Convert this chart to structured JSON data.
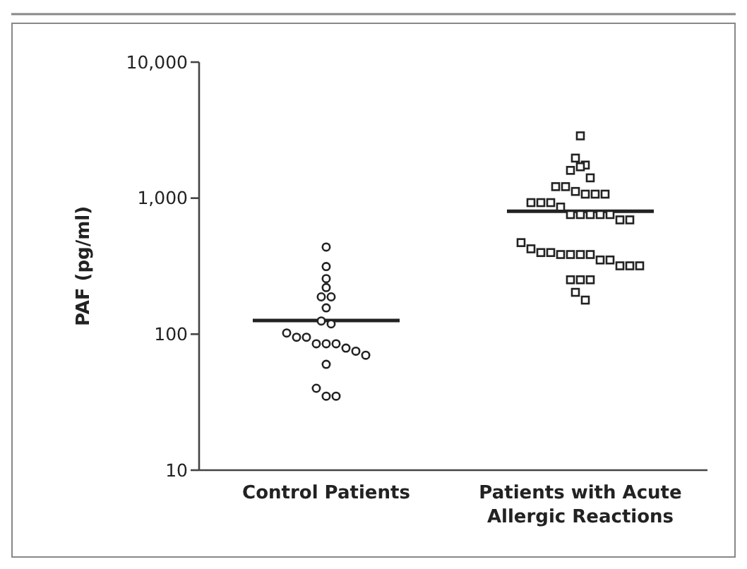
{
  "chart_data": {
    "type": "scatter",
    "ylabel": "PAF (pg/ml)",
    "categories": [
      "Control Patients",
      "Patients with Acute Allergic Reactions"
    ],
    "log": true,
    "ylim": [
      10,
      10000
    ],
    "yticks": [
      10,
      100,
      {
        "value": 1000,
        "label": "1,000"
      },
      {
        "value": 10000,
        "label": "10,000"
      }
    ],
    "series": [
      {
        "type": "scatter",
        "marker": "circle",
        "color": "#222222",
        "x": [
          "Control Patients",
          "Control Patients",
          "Control Patients",
          "Control Patients",
          "Control Patients",
          "Control Patients",
          "Control Patients",
          "Control Patients",
          "Control Patients",
          "Control Patients",
          "Control Patients",
          "Control Patients",
          "Control Patients",
          "Control Patients",
          "Control Patients",
          "Control Patients",
          "Control Patients",
          "Control Patients",
          "Control Patients",
          "Control Patients",
          "Control Patients",
          "Control Patients"
        ],
        "values": [
          437,
          314,
          256,
          220,
          188,
          188,
          156,
          125,
          119,
          102,
          95,
          95,
          85,
          85,
          85,
          79,
          75,
          70,
          60,
          40,
          35,
          35
        ]
      },
      {
        "type": "scatter",
        "marker": "square",
        "color": "#222222",
        "x": [
          "Patients with Acute Allergic Reactions",
          "Patients with Acute Allergic Reactions",
          "Patients with Acute Allergic Reactions",
          "Patients with Acute Allergic Reactions",
          "Patients with Acute Allergic Reactions",
          "Patients with Acute Allergic Reactions",
          "Patients with Acute Allergic Reactions",
          "Patients with Acute Allergic Reactions",
          "Patients with Acute Allergic Reactions",
          "Patients with Acute Allergic Reactions",
          "Patients with Acute Allergic Reactions",
          "Patients with Acute Allergic Reactions",
          "Patients with Acute Allergic Reactions",
          "Patients with Acute Allergic Reactions",
          "Patients with Acute Allergic Reactions",
          "Patients with Acute Allergic Reactions",
          "Patients with Acute Allergic Reactions",
          "Patients with Acute Allergic Reactions",
          "Patients with Acute Allergic Reactions",
          "Patients with Acute Allergic Reactions",
          "Patients with Acute Allergic Reactions",
          "Patients with Acute Allergic Reactions",
          "Patients with Acute Allergic Reactions",
          "Patients with Acute Allergic Reactions",
          "Patients with Acute Allergic Reactions",
          "Patients with Acute Allergic Reactions",
          "Patients with Acute Allergic Reactions",
          "Patients with Acute Allergic Reactions",
          "Patients with Acute Allergic Reactions",
          "Patients with Acute Allergic Reactions",
          "Patients with Acute Allergic Reactions",
          "Patients with Acute Allergic Reactions",
          "Patients with Acute Allergic Reactions",
          "Patients with Acute Allergic Reactions",
          "Patients with Acute Allergic Reactions",
          "Patients with Acute Allergic Reactions",
          "Patients with Acute Allergic Reactions",
          "Patients with Acute Allergic Reactions",
          "Patients with Acute Allergic Reactions",
          "Patients with Acute Allergic Reactions",
          "Patients with Acute Allergic Reactions"
        ],
        "values": [
          2870,
          1970,
          1600,
          1700,
          1750,
          1410,
          1215,
          1215,
          1120,
          1070,
          1070,
          1070,
          927,
          927,
          927,
          860,
          757,
          757,
          757,
          757,
          757,
          692,
          692,
          471,
          424,
          398,
          398,
          385,
          385,
          385,
          385,
          351,
          351,
          318,
          318,
          318,
          251,
          251,
          251,
          203,
          178
        ]
      }
    ],
    "ref_lines": [
      {
        "axis": "y",
        "value": 126,
        "color": "#222222",
        "line_style": "solid"
      },
      {
        "axis": "y",
        "value": 800,
        "color": "#222222",
        "line_style": "solid"
      }
    ]
  }
}
